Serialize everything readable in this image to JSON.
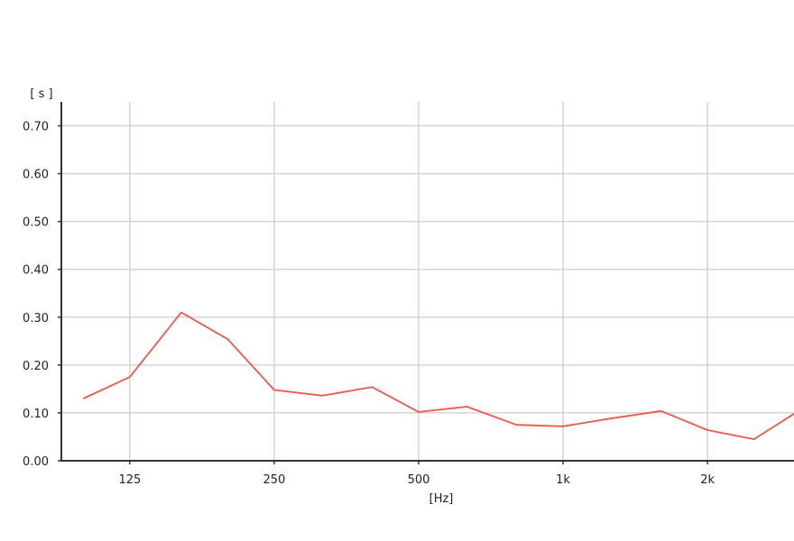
{
  "chart_data": {
    "type": "line",
    "title": "",
    "xlabel": "[Hz]",
    "ylabel": "[ s ]",
    "x_scale": "log",
    "xlim": [
      90,
      3150
    ],
    "ylim": [
      0,
      0.75
    ],
    "grid": true,
    "x_ticks": [
      {
        "value": 125,
        "label": "125"
      },
      {
        "value": 250,
        "label": "250"
      },
      {
        "value": 500,
        "label": "500"
      },
      {
        "value": 1000,
        "label": "1k"
      },
      {
        "value": 2000,
        "label": "2k"
      }
    ],
    "y_ticks": [
      {
        "value": 0,
        "label": "0.00"
      },
      {
        "value": 0.1,
        "label": "0.10"
      },
      {
        "value": 0.2,
        "label": "0.20"
      },
      {
        "value": 0.3,
        "label": "0.30"
      },
      {
        "value": 0.4,
        "label": "0.40"
      },
      {
        "value": 0.5,
        "label": "0.50"
      },
      {
        "value": 0.6,
        "label": "0.60"
      },
      {
        "value": 0.7,
        "label": "0.70"
      }
    ],
    "series": [
      {
        "color": "#f0574a",
        "x": [
          100,
          125,
          160,
          200,
          250,
          315,
          400,
          500,
          630,
          800,
          1000,
          1250,
          1600,
          2000,
          2500,
          3150
        ],
        "y": [
          0.13,
          0.175,
          0.31,
          0.254,
          0.148,
          0.136,
          0.154,
          0.102,
          0.113,
          0.075,
          0.072,
          0.088,
          0.104,
          0.064,
          0.045,
          0.109
        ]
      }
    ]
  }
}
